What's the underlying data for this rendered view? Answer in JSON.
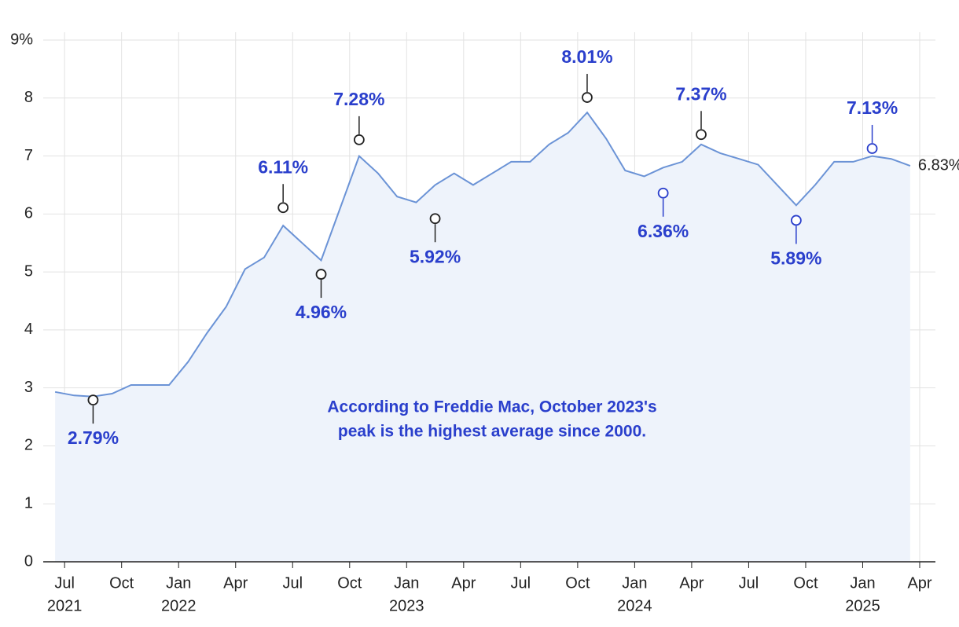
{
  "chart_data": {
    "type": "area",
    "x": [
      "2021-06",
      "2021-07",
      "2021-08",
      "2021-09",
      "2021-10",
      "2021-11",
      "2021-12",
      "2022-01",
      "2022-02",
      "2022-03",
      "2022-04",
      "2022-05",
      "2022-06",
      "2022-07",
      "2022-08",
      "2022-09",
      "2022-10",
      "2022-11",
      "2022-12",
      "2023-01",
      "2023-02",
      "2023-03",
      "2023-04",
      "2023-05",
      "2023-06",
      "2023-07",
      "2023-08",
      "2023-09",
      "2023-10",
      "2023-11",
      "2023-12",
      "2024-01",
      "2024-02",
      "2024-03",
      "2024-04",
      "2024-05",
      "2024-06",
      "2024-07",
      "2024-08",
      "2024-09",
      "2024-10",
      "2024-11",
      "2024-12",
      "2025-01",
      "2025-02",
      "2025-03"
    ],
    "values": [
      2.93,
      2.87,
      2.85,
      2.9,
      3.05,
      3.05,
      3.05,
      3.45,
      3.95,
      4.4,
      5.05,
      5.25,
      5.8,
      5.5,
      5.2,
      6.1,
      7.0,
      6.7,
      6.3,
      6.2,
      6.5,
      6.7,
      6.5,
      6.7,
      6.9,
      6.9,
      7.2,
      7.4,
      7.75,
      7.3,
      6.75,
      6.65,
      6.8,
      6.9,
      7.2,
      7.05,
      6.95,
      6.85,
      6.5,
      6.15,
      6.5,
      6.9,
      6.9,
      7.0,
      6.95,
      6.83
    ],
    "value_labels": [
      null,
      null,
      null,
      null,
      null,
      null,
      null,
      null,
      null,
      null,
      null,
      null,
      null,
      null,
      null,
      null,
      null,
      null,
      null,
      null,
      null,
      null,
      null,
      null,
      null,
      null,
      null,
      null,
      null,
      null,
      null,
      null,
      null,
      null,
      null,
      null,
      null,
      null,
      null,
      null,
      null,
      null,
      null,
      null,
      null,
      "6.83%"
    ],
    "color": "#6b93d6",
    "fill": "#eef3fb",
    "xlim": [
      "2021-06",
      "2025-04"
    ],
    "xticks": [
      {
        "value": "2021-07",
        "label": "Jul"
      },
      {
        "value": "2021-10",
        "label": "Oct"
      },
      {
        "value": "2022-01",
        "label": "Jan"
      },
      {
        "value": "2022-04",
        "label": "Apr"
      },
      {
        "value": "2022-07",
        "label": "Jul"
      },
      {
        "value": "2022-10",
        "label": "Oct"
      },
      {
        "value": "2023-01",
        "label": "Jan"
      },
      {
        "value": "2023-04",
        "label": "Apr"
      },
      {
        "value": "2023-07",
        "label": "Jul"
      },
      {
        "value": "2023-10",
        "label": "Oct"
      },
      {
        "value": "2024-01",
        "label": "Jan"
      },
      {
        "value": "2024-04",
        "label": "Apr"
      },
      {
        "value": "2024-07",
        "label": "Jul"
      },
      {
        "value": "2024-10",
        "label": "Oct"
      },
      {
        "value": "2025-01",
        "label": "Jan"
      },
      {
        "value": "2025-04",
        "label": "Apr"
      }
    ],
    "xtick_years": [
      {
        "value": "2021-07",
        "label": "2021"
      },
      {
        "value": "2022-01",
        "label": "2022"
      },
      {
        "value": "2023-01",
        "label": "2023"
      },
      {
        "value": "2024-01",
        "label": "2024"
      },
      {
        "value": "2025-01",
        "label": "2025"
      }
    ],
    "ylim": [
      0,
      9
    ],
    "yticks": [
      0,
      1,
      2,
      3,
      4,
      5,
      6,
      7,
      8,
      {
        "value": 9,
        "label": "9%"
      }
    ],
    "grid": true,
    "annotations": [
      {
        "x": "2021-08",
        "value": 2.79,
        "label": "2.79%",
        "position": "below",
        "marker_color": "#222222"
      },
      {
        "x": "2022-06",
        "value": 6.11,
        "label": "6.11%",
        "position": "above",
        "marker_color": "#222222"
      },
      {
        "x": "2022-08",
        "value": 4.96,
        "label": "4.96%",
        "position": "below",
        "marker_color": "#222222"
      },
      {
        "x": "2022-10",
        "value": 7.28,
        "label": "7.28%",
        "position": "above",
        "marker_color": "#222222"
      },
      {
        "x": "2023-02",
        "value": 5.92,
        "label": "5.92%",
        "position": "below",
        "marker_color": "#222222"
      },
      {
        "x": "2023-10",
        "value": 8.01,
        "label": "8.01%",
        "position": "above",
        "marker_color": "#222222"
      },
      {
        "x": "2024-02",
        "value": 6.36,
        "label": "6.36%",
        "position": "below",
        "marker_color": "#2a3fcc"
      },
      {
        "x": "2024-04",
        "value": 7.37,
        "label": "7.37%",
        "position": "above",
        "marker_color": "#222222"
      },
      {
        "x": "2024-09",
        "value": 5.89,
        "label": "5.89%",
        "position": "below",
        "marker_color": "#2a3fcc"
      },
      {
        "x": "2025-01",
        "value": 7.13,
        "label": "7.13%",
        "position": "above",
        "marker_color": "#2a3fcc"
      }
    ],
    "annotation_color": "#2a3fcc",
    "note": [
      "According to Freddie Mac, October 2023's",
      "peak is the highest average since 2000."
    ]
  }
}
